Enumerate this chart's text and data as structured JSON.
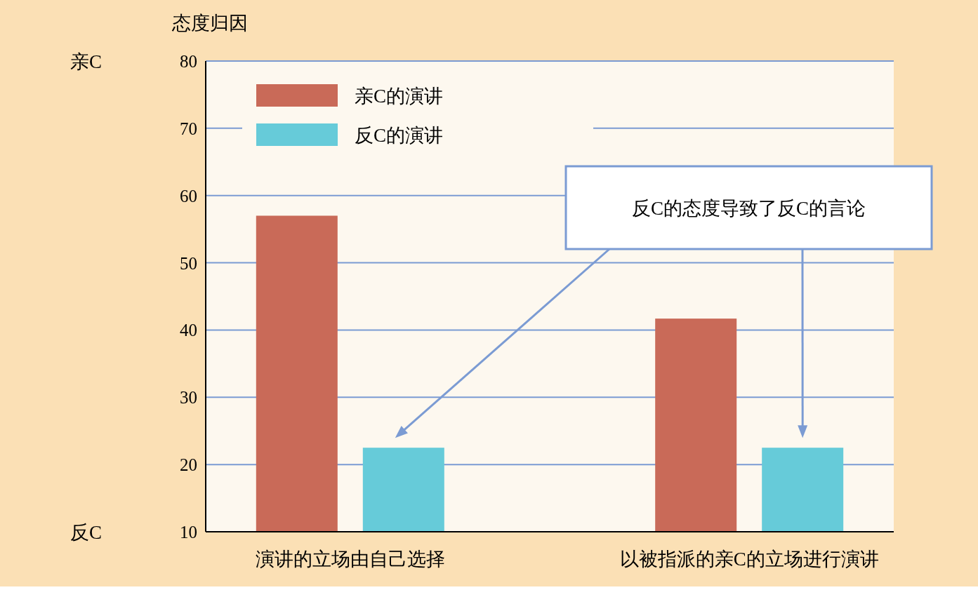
{
  "chart_data": {
    "type": "bar",
    "ylabel": "态度归因",
    "categories": [
      "演讲的立场由自己选择",
      "以被指派的亲C的立场进行演讲"
    ],
    "series": [
      {
        "name": "亲C的演讲",
        "color": "#c96a58",
        "values": [
          57,
          41.7
        ]
      },
      {
        "name": "反C的演讲",
        "color": "#66cbd9",
        "values": [
          22.5,
          22.5
        ]
      }
    ],
    "ylim": [
      10,
      80
    ],
    "yticks": [
      10,
      20,
      30,
      40,
      50,
      60,
      70,
      80
    ],
    "grid": "y",
    "legend": "top left",
    "annotations": [
      "亲C",
      "反C",
      "反C的态度导致了反C的言论"
    ]
  }
}
